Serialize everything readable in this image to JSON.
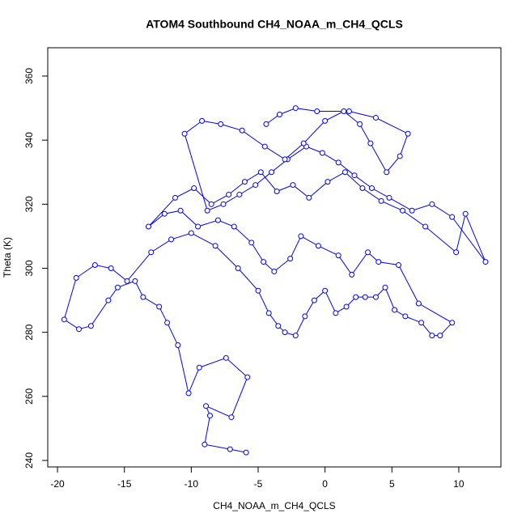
{
  "chart_data": {
    "type": "line",
    "title": "ATOM4 Southbound CH4_NOAA_m_CH4_QCLS",
    "x_label": "CH4_NOAA_m_CH4_QCLS",
    "y_label": "Theta (K)",
    "color": "#0000ff",
    "xlim": [
      -20.73,
      13.15
    ],
    "ylim": [
      237.98,
      368.84
    ],
    "xticks": [
      -20,
      -15,
      -10,
      -5,
      0,
      5,
      10
    ],
    "yticks": [
      240,
      260,
      280,
      300,
      320,
      340,
      360
    ],
    "x": [
      -5.9,
      -7.1,
      -9.0,
      -8.6,
      -8.9,
      -7.0,
      -5.8,
      -7.4,
      -9.4,
      -10.2,
      -11.0,
      -11.8,
      -12.4,
      -13.6,
      -14.2,
      -15.5,
      -16.2,
      -17.5,
      -18.4,
      -19.5,
      -18.6,
      -17.2,
      -16.0,
      -14.8,
      -13.0,
      -11.5,
      -10.0,
      -8.2,
      -6.5,
      -5.0,
      -4.2,
      -3.5,
      -3.0,
      -2.2,
      -1.5,
      -0.8,
      0.0,
      0.8,
      1.6,
      2.3,
      3.0,
      3.8,
      4.5,
      5.2,
      6.0,
      7.2,
      8.0,
      8.6,
      9.5,
      7.0,
      5.5,
      4.0,
      3.2,
      2.0,
      1.0,
      -0.5,
      -1.8,
      -2.6,
      -3.8,
      -4.6,
      -5.5,
      -6.8,
      -8.0,
      -9.5,
      -10.8,
      -12.0,
      -13.2,
      -11.2,
      -9.8,
      -8.5,
      -7.2,
      -6.0,
      -4.8,
      -3.6,
      -2.4,
      -1.2,
      0.2,
      1.5,
      2.8,
      4.2,
      5.8,
      7.5,
      9.8,
      10.5,
      12.0,
      9.5,
      8.0,
      6.5,
      4.8,
      3.5,
      2.2,
      1.0,
      -0.2,
      -1.4,
      -2.8,
      -4.0,
      -5.2,
      -6.4,
      -7.6,
      -8.8,
      -10.5,
      -9.2,
      -7.8,
      -6.2,
      -4.5,
      -3.0,
      -1.6,
      0.0,
      1.4,
      2.6,
      3.4,
      4.6,
      5.6,
      6.2,
      3.8,
      1.8,
      -0.6,
      -2.2,
      -3.4,
      -4.4
    ],
    "series": [
      {
        "values": [
          242.5,
          243.5,
          245,
          254,
          257,
          253.5,
          266,
          272,
          269,
          261,
          276,
          283,
          288,
          291,
          296,
          294,
          290,
          282,
          281,
          284,
          297,
          301,
          300,
          296,
          305,
          309,
          311,
          307,
          300,
          293,
          286,
          282,
          280,
          279,
          285,
          290,
          293,
          286,
          288,
          291,
          291,
          291,
          294,
          287,
          285,
          283,
          279,
          279,
          283,
          289,
          301,
          302,
          305,
          298,
          304,
          307,
          310,
          303,
          299,
          302,
          308,
          313,
          315,
          313,
          318,
          317,
          313,
          322,
          325,
          320,
          323,
          327,
          330,
          324,
          326,
          322,
          327,
          330,
          325,
          321,
          318,
          313,
          305,
          317,
          302,
          316,
          320,
          318,
          322,
          325,
          329,
          333,
          336,
          338,
          334,
          330,
          326,
          323,
          320,
          318,
          342,
          346,
          345,
          343,
          338,
          334,
          339,
          346,
          349,
          345,
          339,
          330,
          335,
          342,
          347,
          349,
          349,
          350,
          348,
          345
        ]
      }
    ]
  }
}
